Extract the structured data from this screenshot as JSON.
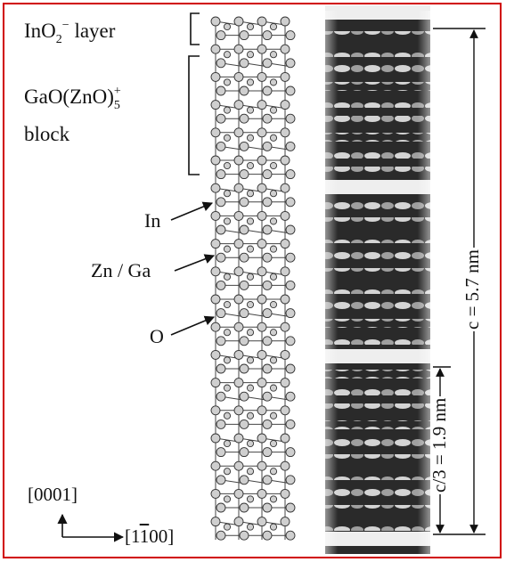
{
  "labels": {
    "layer_main": "InO",
    "layer_sub": "2",
    "layer_sup": "−",
    "layer_rest": " layer",
    "block_main": "GaO(ZnO)",
    "block_sub": "5",
    "block_sup": "+",
    "block_word": "block",
    "in": "In",
    "znga": "Zn / Ga",
    "o": "O",
    "c_full": "c = 5.7 nm",
    "c_third": "c/3 = 1.9 nm",
    "axis_vertical": "[0001]",
    "axis_h_open": "[1",
    "axis_h_bar": "1",
    "axis_h_close": "00]"
  },
  "colors": {
    "frame": "#d00000",
    "atom": "#cfcfcf",
    "bond": "#444444"
  }
}
